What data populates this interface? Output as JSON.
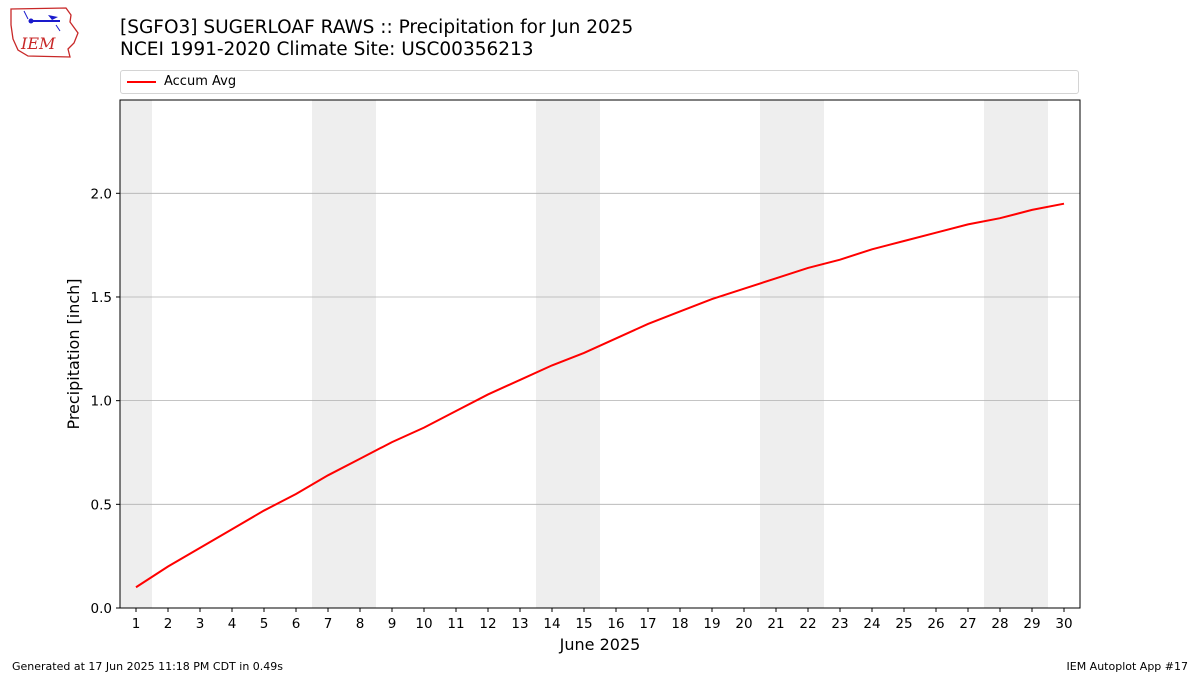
{
  "header": {
    "title_line1": "[SGFO3] SUGERLOAF RAWS :: Precipitation for Jun 2025",
    "title_line2": "NCEI 1991-2020 Climate Site: USC00356213"
  },
  "logo": {
    "text": "IEM"
  },
  "footer": {
    "generated": "Generated at 17 Jun 2025 11:18 PM CDT in 0.49s",
    "app": "IEM Autoplot App #17"
  },
  "chart_data": {
    "type": "line",
    "title": "[SGFO3] SUGERLOAF RAWS :: Precipitation for Jun 2025",
    "subtitle": "NCEI 1991-2020 Climate Site: USC00356213",
    "xlabel": "June 2025",
    "ylabel": "Precipitation [inch]",
    "x": [
      1,
      2,
      3,
      4,
      5,
      6,
      7,
      8,
      9,
      10,
      11,
      12,
      13,
      14,
      15,
      16,
      17,
      18,
      19,
      20,
      21,
      22,
      23,
      24,
      25,
      26,
      27,
      28,
      29,
      30
    ],
    "xlim": [
      0.5,
      30.5
    ],
    "ylim": [
      0,
      2.45
    ],
    "yticks": [
      0.0,
      0.5,
      1.0,
      1.5,
      2.0
    ],
    "ytick_labels": [
      "0.0",
      "0.5",
      "1.0",
      "1.5",
      "2.0"
    ],
    "grid": "horizontal",
    "legend_position": "top",
    "weekend_shading": [
      [
        0.5,
        1.5
      ],
      [
        6.5,
        8.5
      ],
      [
        13.5,
        15.5
      ],
      [
        20.5,
        22.5
      ],
      [
        27.5,
        29.5
      ]
    ],
    "shade_color": "#eeeeee",
    "series": [
      {
        "name": "Accum Avg",
        "color": "#ff0000",
        "values": [
          0.1,
          0.2,
          0.29,
          0.38,
          0.47,
          0.55,
          0.64,
          0.72,
          0.8,
          0.87,
          0.95,
          1.03,
          1.1,
          1.17,
          1.23,
          1.3,
          1.37,
          1.43,
          1.49,
          1.54,
          1.59,
          1.64,
          1.68,
          1.73,
          1.77,
          1.81,
          1.85,
          1.88,
          1.92,
          1.95
        ]
      }
    ]
  }
}
